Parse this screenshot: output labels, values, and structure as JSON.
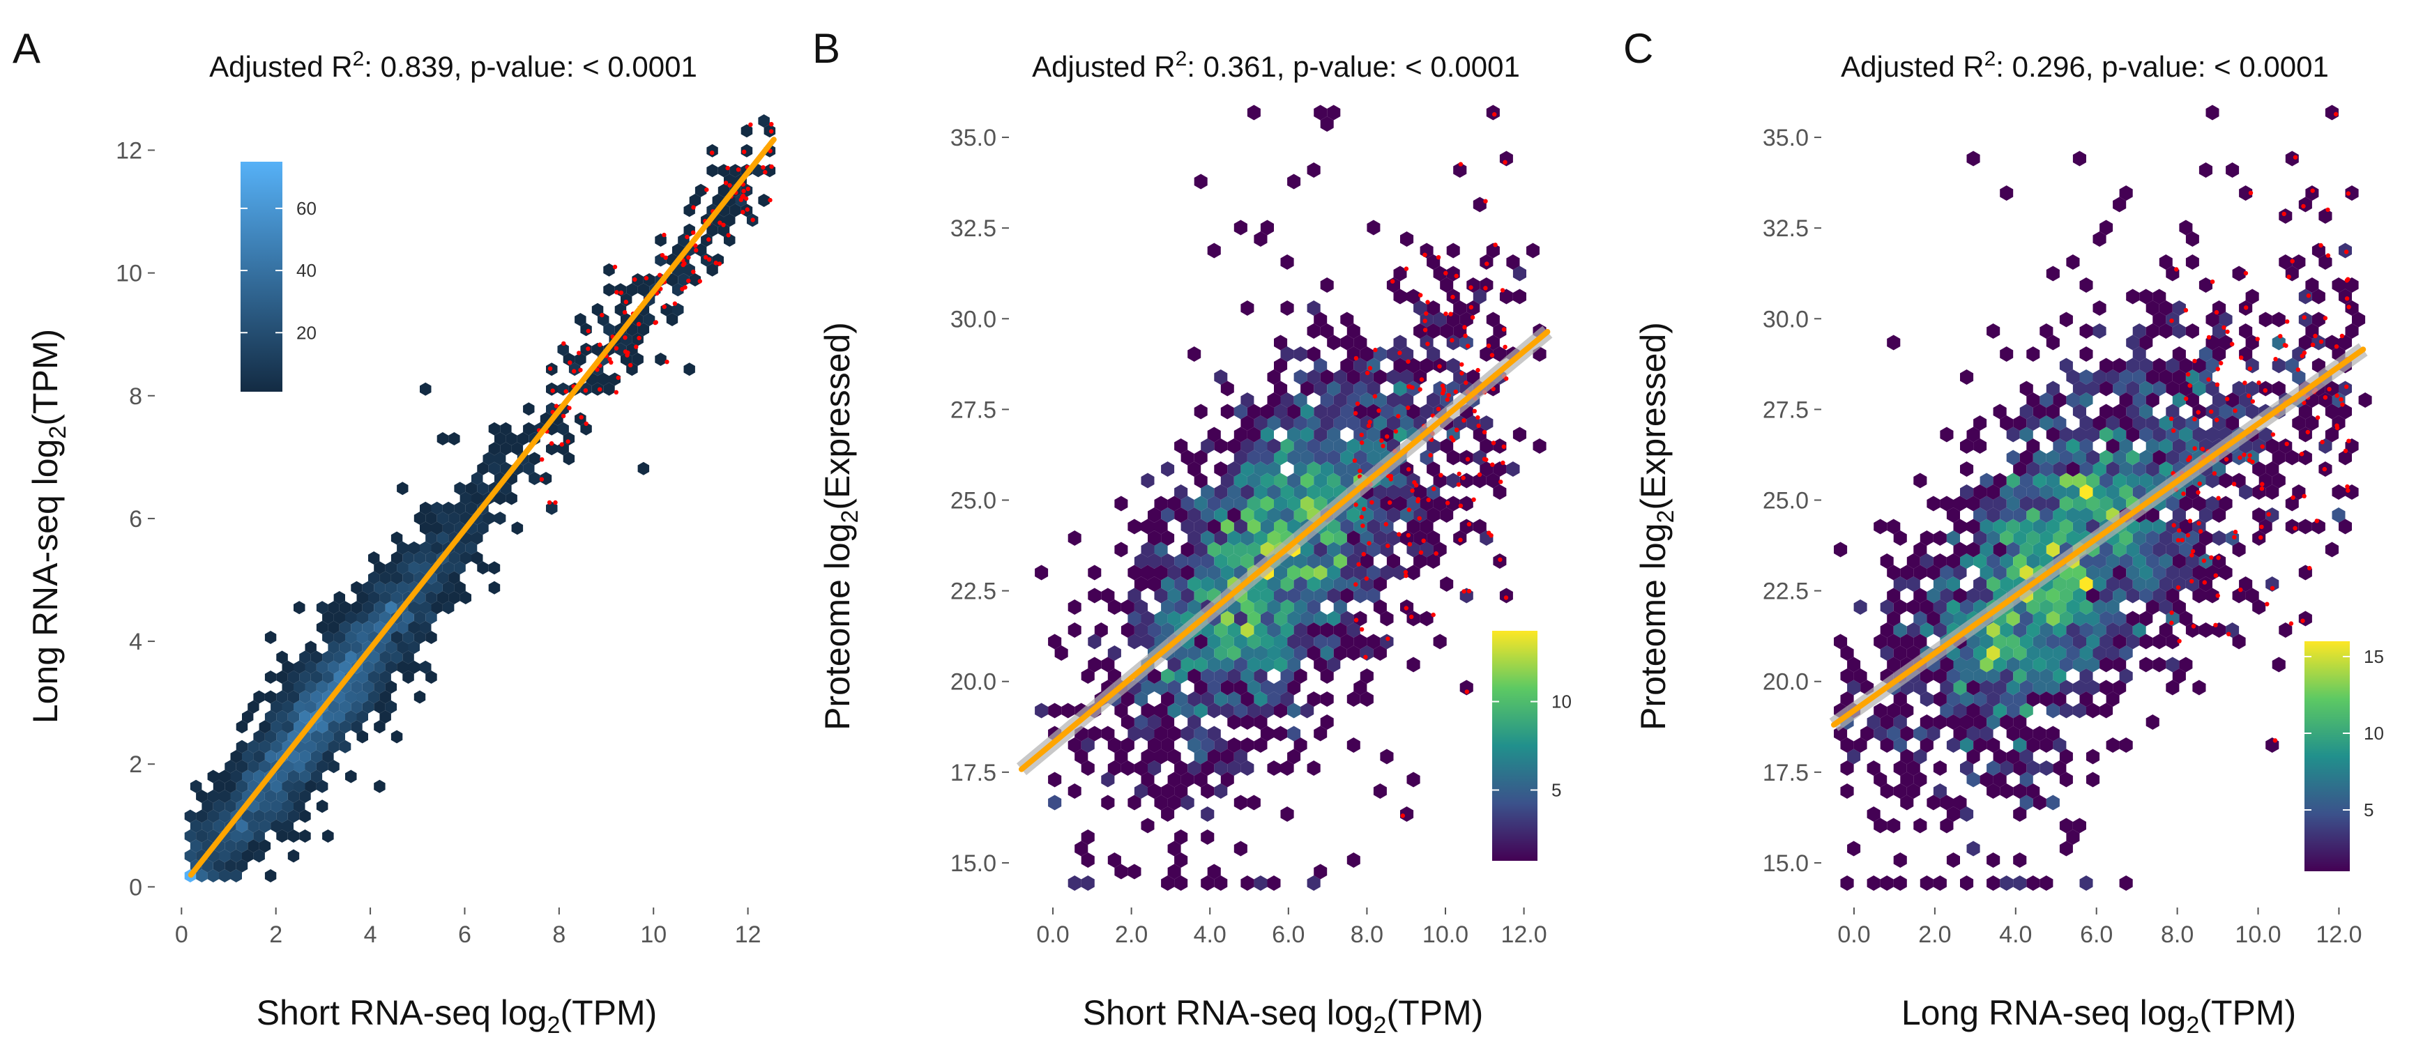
{
  "chart_data": [
    {
      "panel": "A",
      "type": "hexbin",
      "title": "Adjusted R^2: 0.839, p-value: < 0.0001",
      "title_parts": {
        "pre": "Adjusted R",
        "sup": "2",
        "post": ": 0.839, p-value: < 0.0001"
      },
      "xlabel": {
        "pre": "Short RNA-seq log",
        "sub": "2",
        "post": "(TPM)"
      },
      "ylabel": {
        "pre": "Long RNA-seq log",
        "sub": "2",
        "post": "(TPM)"
      },
      "xlim": [
        -0.3,
        12.7
      ],
      "ylim": [
        -0.2,
        12.8
      ],
      "xticks": [
        0,
        2,
        4,
        6,
        8,
        10,
        12
      ],
      "yticks": [
        0,
        2,
        4,
        6,
        8,
        10,
        12
      ],
      "tick_decimals": 0,
      "colormap": "blues",
      "colorbar": {
        "min": 1,
        "max": 75,
        "ticks": [
          20,
          40,
          60
        ],
        "position": "top-left"
      },
      "fit": {
        "intercept": 0.0,
        "slope": 0.97,
        "x_range": [
          0.2,
          12.55
        ]
      },
      "fit_color": "#FFA500",
      "highlight_color": "#FF0000",
      "point_cloud": {
        "n": 3200,
        "x_center": 3.0,
        "x_spread": 1.5,
        "x_min": 0.2,
        "x_max": 12.5,
        "noise": 0.45,
        "outlier_fraction": 0.04
      },
      "highlight_cloud": {
        "n": 130,
        "x_range": [
          7.5,
          12.5
        ],
        "noise": 0.5
      }
    },
    {
      "panel": "B",
      "type": "hexbin",
      "title": "Adjusted R^2: 0.361, p-value: < 0.0001",
      "title_parts": {
        "pre": "Adjusted R",
        "sup": "2",
        "post": ": 0.361, p-value: < 0.0001"
      },
      "xlabel": {
        "pre": "Short RNA-seq log",
        "sub": "2",
        "post": "(TPM)"
      },
      "ylabel": {
        "pre": "Proteome log",
        "sub": "2",
        "post": "(Expressed)"
      },
      "xlim": [
        -0.8,
        12.7
      ],
      "ylim": [
        14.0,
        36.0
      ],
      "xticks": [
        0,
        2,
        4,
        6,
        8,
        10,
        12
      ],
      "yticks": [
        15.0,
        17.5,
        20.0,
        22.5,
        25.0,
        27.5,
        30.0,
        32.5,
        35.0
      ],
      "tick_decimals": 1,
      "colormap": "viridis",
      "colorbar": {
        "min": 1,
        "max": 14,
        "ticks": [
          5,
          10
        ],
        "position": "bottom-right"
      },
      "fit": {
        "intercept": 18.3,
        "slope": 0.9,
        "x_range": [
          -0.8,
          12.6
        ]
      },
      "fit_color": "#FFA500",
      "highlight_color": "#FF0000",
      "point_cloud": {
        "n": 2200,
        "x_center": 5.5,
        "x_spread": 1.8,
        "x_min": -0.5,
        "x_max": 12.5,
        "noise": 2.2,
        "outlier_fraction": 0.06
      },
      "highlight_cloud": {
        "n": 170,
        "x_range": [
          7.6,
          11.5
        ],
        "noise": 2.6
      }
    },
    {
      "panel": "C",
      "type": "hexbin",
      "title": "Adjusted R^2: 0.296, p-value: < 0.0001",
      "title_parts": {
        "pre": "Adjusted R",
        "sup": "2",
        "post": ": 0.296, p-value: < 0.0001"
      },
      "xlabel": {
        "pre": "Long RNA-seq log",
        "sub": "2",
        "post": "(TPM)"
      },
      "ylabel": {
        "pre": "Proteome log",
        "sub": "2",
        "post": "(Expressed)"
      },
      "xlim": [
        -0.5,
        12.7
      ],
      "ylim": [
        14.0,
        36.0
      ],
      "xticks": [
        0,
        2,
        4,
        6,
        8,
        10,
        12
      ],
      "yticks": [
        15.0,
        17.5,
        20.0,
        22.5,
        25.0,
        27.5,
        30.0,
        32.5,
        35.0
      ],
      "tick_decimals": 1,
      "colormap": "viridis",
      "colorbar": {
        "min": 1,
        "max": 16,
        "ticks": [
          5,
          10,
          15
        ],
        "position": "bottom-right"
      },
      "fit": {
        "intercept": 19.2,
        "slope": 0.79,
        "x_range": [
          -0.5,
          12.6
        ]
      },
      "fit_color": "#FFA500",
      "highlight_color": "#FF0000",
      "point_cloud": {
        "n": 2200,
        "x_center": 5.0,
        "x_spread": 2.0,
        "x_min": -0.3,
        "x_max": 12.5,
        "noise": 2.3,
        "outlier_fraction": 0.06
      },
      "highlight_cloud": {
        "n": 170,
        "x_range": [
          7.8,
          12.2
        ],
        "noise": 2.6
      }
    }
  ]
}
